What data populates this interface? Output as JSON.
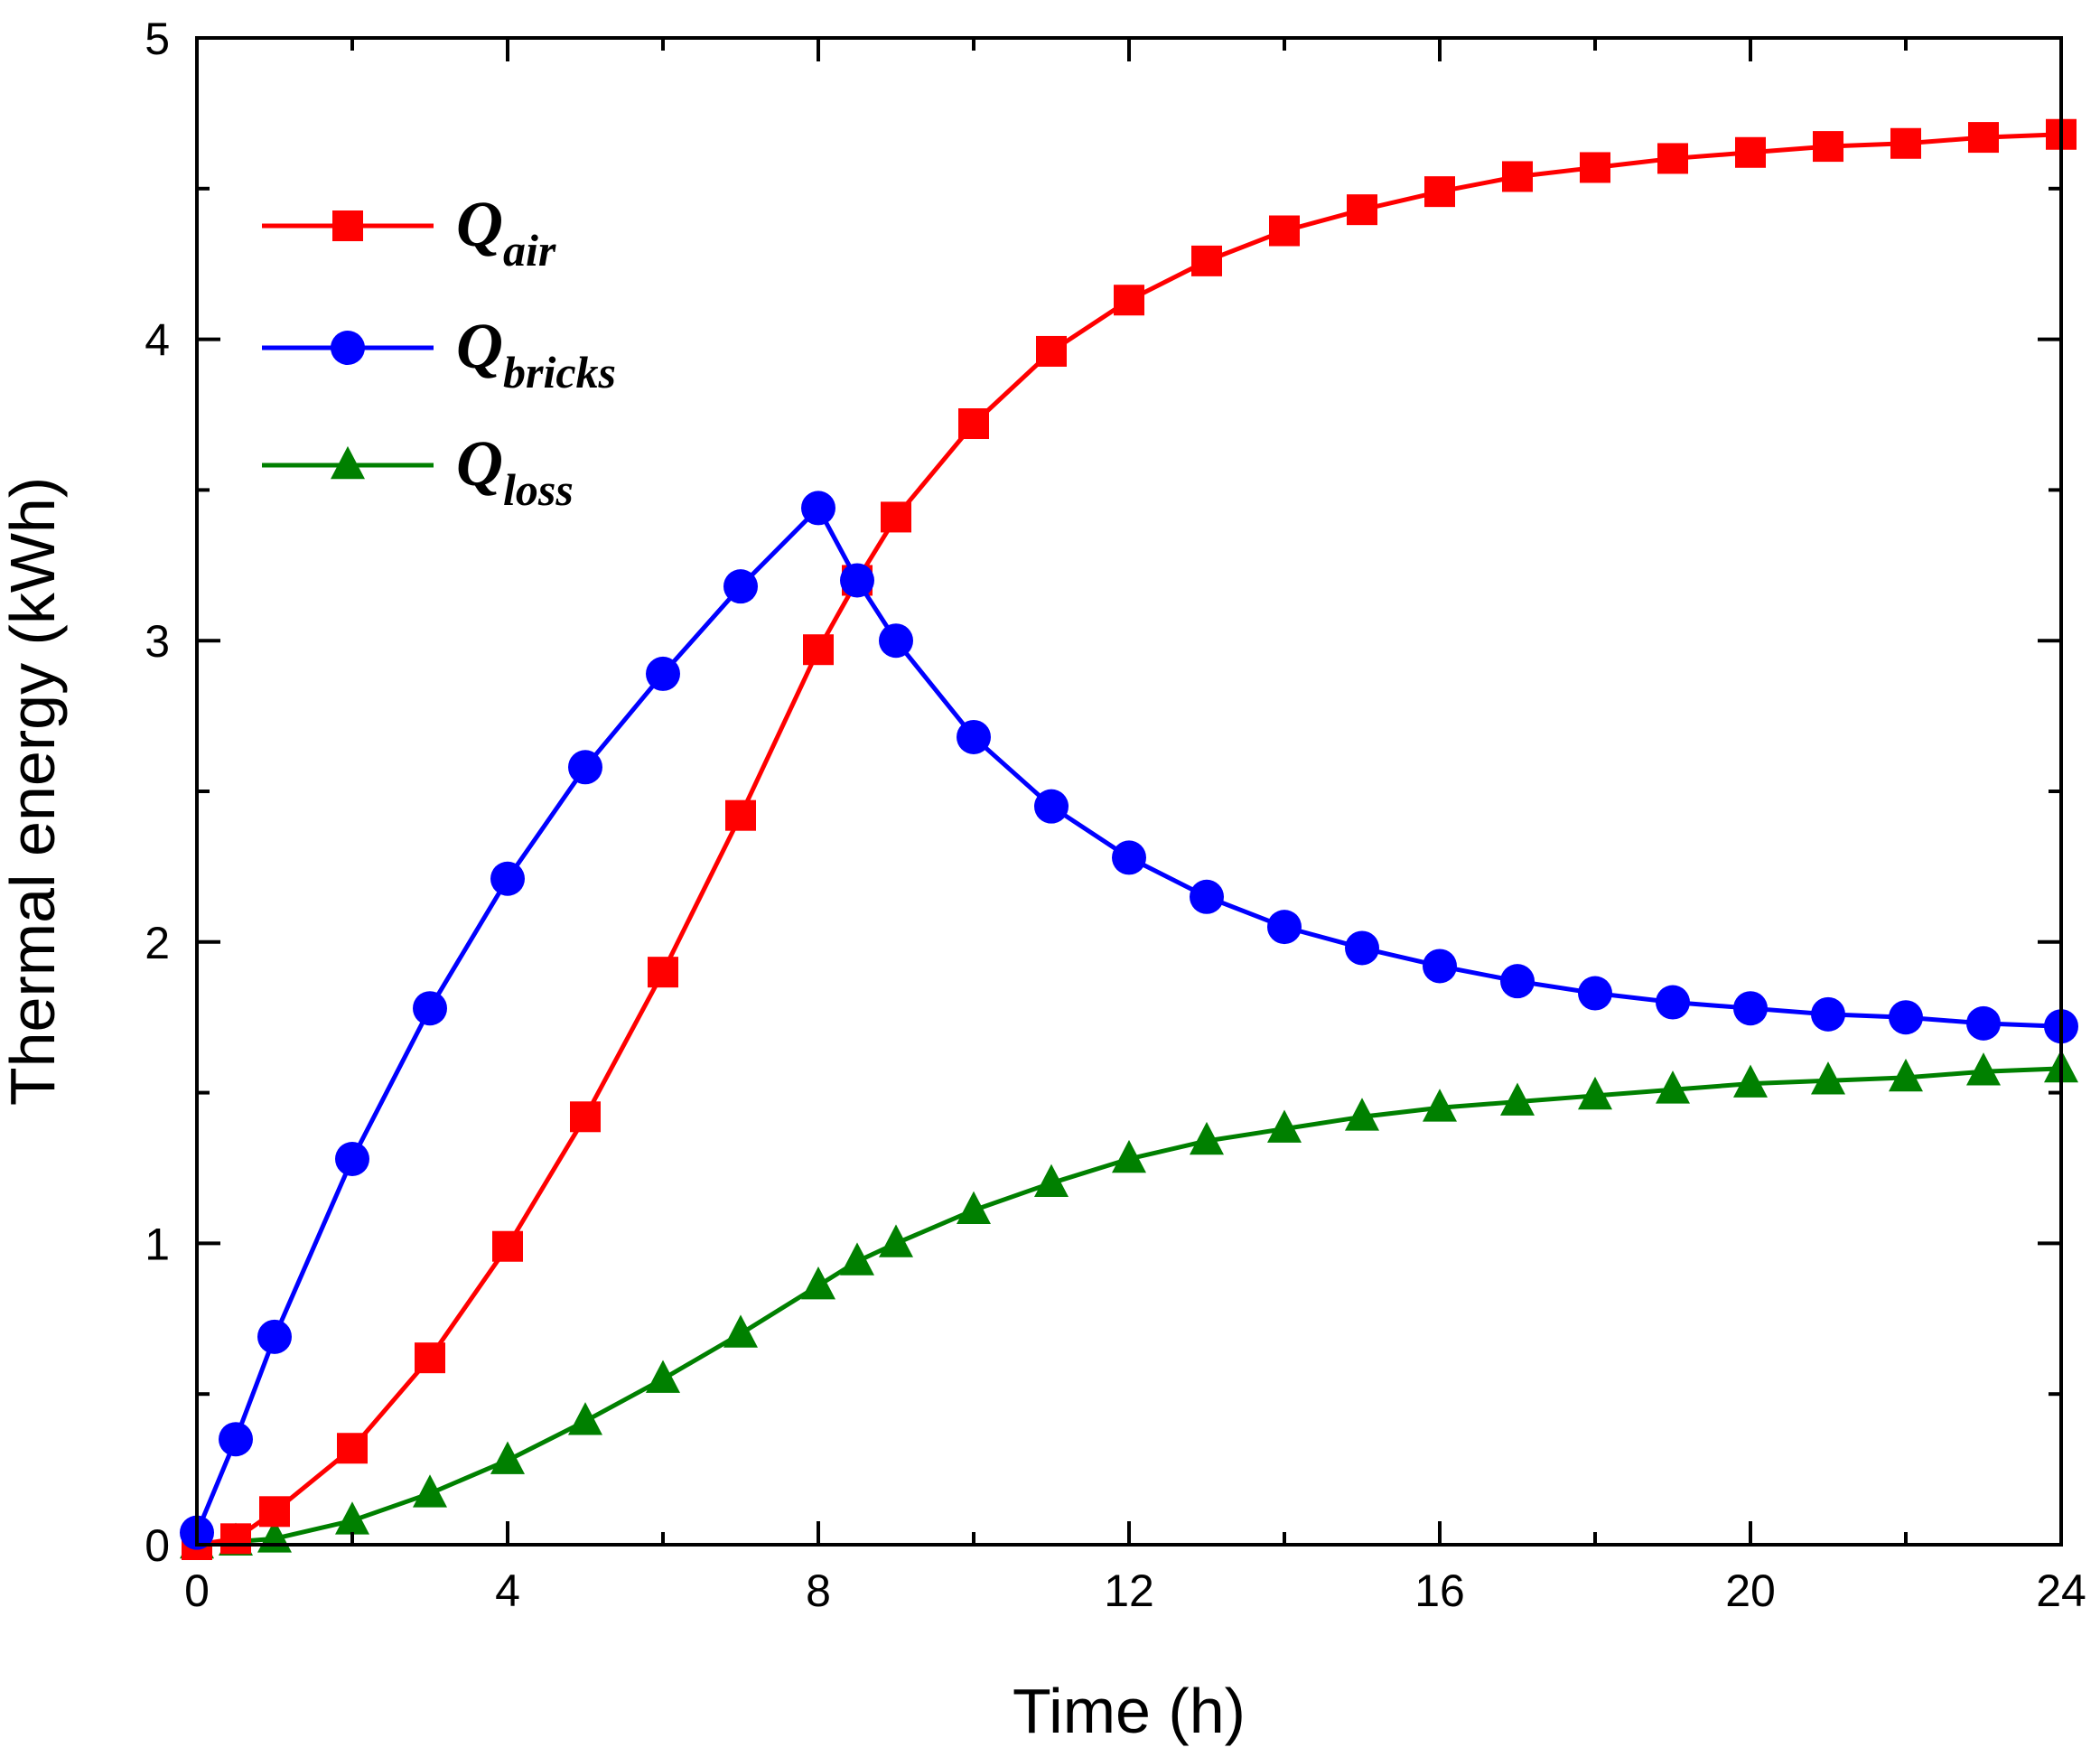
{
  "chart_data": {
    "type": "line",
    "title": "",
    "xlabel": "Time (h)",
    "ylabel": "Thermal energy (kWh)",
    "xlim": [
      0,
      24
    ],
    "ylim": [
      0,
      5
    ],
    "xticks": [
      0,
      4,
      8,
      12,
      16,
      20,
      24
    ],
    "xtick_labels": [
      "0",
      "4",
      "8",
      "12",
      "16",
      "20",
      "24"
    ],
    "yticks": [
      0,
      1,
      2,
      3,
      4,
      5
    ],
    "ytick_labels": [
      "0",
      "1",
      "2",
      "3",
      "4",
      "5"
    ],
    "grid": false,
    "legend_position": "top-left",
    "series": [
      {
        "name": "Q_air",
        "legend_main": "Q",
        "legend_sub": "air",
        "color": "#ff0000",
        "marker": "square",
        "x": [
          0,
          0.5,
          1,
          2,
          3,
          4,
          5,
          6,
          7,
          8,
          8.5,
          9,
          10,
          11,
          12,
          13,
          14,
          15,
          16,
          17,
          18,
          19,
          20,
          21,
          22,
          23,
          24
        ],
        "y": [
          0,
          0.02,
          0.11,
          0.32,
          0.62,
          0.99,
          1.42,
          1.9,
          2.42,
          2.97,
          3.2,
          3.41,
          3.72,
          3.96,
          4.13,
          4.26,
          4.36,
          4.43,
          4.49,
          4.54,
          4.57,
          4.6,
          4.62,
          4.64,
          4.65,
          4.67,
          4.68
        ]
      },
      {
        "name": "Q_bricks",
        "legend_main": "Q",
        "legend_sub": "bricks",
        "color": "#0000ff",
        "marker": "circle",
        "x": [
          0,
          0.5,
          1,
          2,
          3,
          4,
          5,
          6,
          7,
          8,
          8.5,
          9,
          10,
          11,
          12,
          13,
          14,
          15,
          16,
          17,
          18,
          19,
          20,
          21,
          22,
          23,
          24
        ],
        "y": [
          0.04,
          0.35,
          0.69,
          1.28,
          1.78,
          2.21,
          2.58,
          2.89,
          3.18,
          3.44,
          3.2,
          3.0,
          2.68,
          2.45,
          2.28,
          2.15,
          2.05,
          1.98,
          1.92,
          1.87,
          1.83,
          1.8,
          1.78,
          1.76,
          1.75,
          1.73,
          1.72
        ]
      },
      {
        "name": "Q_loss",
        "legend_main": "Q",
        "legend_sub": "loss",
        "color": "#008000",
        "marker": "triangle",
        "x": [
          0,
          0.5,
          1,
          2,
          3,
          4,
          5,
          6,
          7,
          8,
          8.5,
          9,
          10,
          11,
          12,
          13,
          14,
          15,
          16,
          17,
          18,
          19,
          20,
          21,
          22,
          23,
          24
        ],
        "y": [
          0,
          0.01,
          0.02,
          0.08,
          0.17,
          0.28,
          0.41,
          0.55,
          0.7,
          0.86,
          0.94,
          1.0,
          1.11,
          1.2,
          1.28,
          1.34,
          1.38,
          1.42,
          1.45,
          1.47,
          1.49,
          1.51,
          1.53,
          1.54,
          1.55,
          1.57,
          1.58
        ]
      }
    ]
  }
}
